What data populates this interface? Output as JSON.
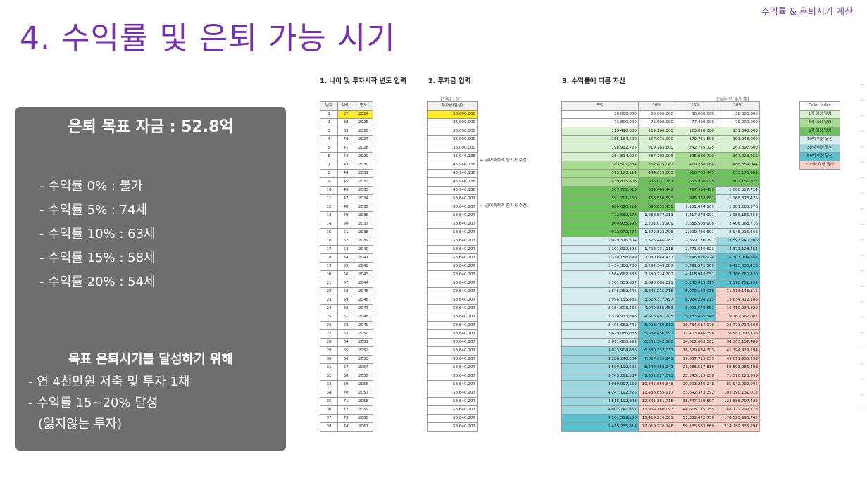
{
  "header": {
    "top_right": "수익률 & 은퇴시기 계산",
    "title": "4. 수익률 및 은퇴 가능 시기"
  },
  "panel": {
    "goal": "은퇴 목표 자금 : 52.8억",
    "rates": [
      "- 수익률 0% : 불가",
      "- 수익률 5% : 74세",
      "- 수익률 10% : 63세",
      "- 수익률 15% : 58세",
      "- 수익률 20% : 54세"
    ],
    "subtitle": "목표 은퇴시기를 달성하기 위해",
    "items": [
      "- 연 4천만원 저축 및 투자 1채",
      "- 수익률 15~20% 달성",
      "(잃지않는 투자)"
    ]
  },
  "sheet": {
    "section1": "1. 나이 및 투자시작 년도 입력",
    "section2": "2. 투자금 입력",
    "section3": "3. 수익률에 따른 자산",
    "unit_invest": "[단위 : 원]",
    "unit_returns": "[%는 년 수익률]",
    "headers_left": [
      "년차",
      "나이",
      "연도"
    ],
    "header_invest": "투자금(원금)",
    "headers_returns": [
      "5%",
      "10%",
      "15%",
      "20%"
    ],
    "note_row6": "← 급여축적액 증가시 수정",
    "note_row11": "← 급여축적액 증가시 수정",
    "rows": [
      [
        "1",
        "37",
        "2024",
        "36,000,000",
        "36,000,000",
        "36,000,000",
        "36,000,000",
        "36,000,000"
      ],
      [
        "2",
        "38",
        "2025",
        "36,000,000",
        "73,800,000",
        "75,600,000",
        "77,400,000",
        "79,200,000"
      ],
      [
        "3",
        "39",
        "2026",
        "36,000,000",
        "113,490,000",
        "119,160,000",
        "125,010,000",
        "131,040,000"
      ],
      [
        "4",
        "40",
        "2027",
        "36,000,000",
        "155,164,500",
        "167,076,000",
        "179,761,500",
        "193,248,000"
      ],
      [
        "5",
        "41",
        "2028",
        "36,000,000",
        "198,922,725",
        "219,783,600",
        "242,725,725",
        "267,897,600"
      ],
      [
        "6",
        "42",
        "2029",
        "45,946,136",
        "254,814,998",
        "287,708,096",
        "325,080,720",
        "367,423,256"
      ],
      [
        "7",
        "43",
        "2030",
        "45,946,136",
        "313,501,884",
        "362,425,042",
        "419,788,964",
        "486,854,044"
      ],
      [
        "8",
        "44",
        "2031",
        "45,946,136",
        "375,123,114",
        "444,613,683",
        "528,703,445",
        "630,170,989"
      ],
      [
        "9",
        "45",
        "2032",
        "45,946,136",
        "439,825,406",
        "535,021,187",
        "653,956,098",
        "802,151,323"
      ],
      [
        "10",
        "46",
        "2033",
        "45,946,136",
        "507,762,813",
        "634,469,442",
        "797,994,499",
        "1,008,527,724"
      ],
      [
        "11",
        "47",
        "2034",
        "58,640,207",
        "591,791,160",
        "756,556,593",
        "976,333,881",
        "1,268,873,475"
      ],
      [
        "12",
        "48",
        "2035",
        "58,640,207",
        "680,020,924",
        "890,852,459",
        "1,181,424,169",
        "1,581,288,376"
      ],
      [
        "13",
        "49",
        "2036",
        "58,640,207",
        "772,662,177",
        "1,038,577,911",
        "1,417,278,001",
        "1,956,186,258"
      ],
      [
        "14",
        "50",
        "2037",
        "58,640,207",
        "869,935,493",
        "1,201,075,909",
        "1,688,509,908",
        "2,406,063,716"
      ],
      [
        "15",
        "51",
        "2038",
        "58,640,207",
        "972,072,474",
        "1,379,823,706",
        "2,000,426,601",
        "2,945,916,666"
      ],
      [
        "16",
        "52",
        "2039",
        "58,640,207",
        "1,079,316,304",
        "1,576,446,283",
        "2,359,130,797",
        "3,593,740,206"
      ],
      [
        "17",
        "53",
        "2040",
        "58,640,207",
        "1,191,922,326",
        "1,792,731,118",
        "2,771,640,623",
        "4,371,128,454"
      ],
      [
        "18",
        "54",
        "2041",
        "58,640,207",
        "1,310,158,649",
        "2,030,644,437",
        "3,246,026,924",
        "5,303,994,351"
      ],
      [
        "19",
        "55",
        "2042",
        "58,640,207",
        "1,434,306,788",
        "2,292,349,087",
        "3,791,571,169",
        "6,423,433,428"
      ],
      [
        "20",
        "56",
        "2043",
        "58,640,207",
        "1,564,662,333",
        "2,580,224,202",
        "4,418,947,051",
        "7,766,760,320"
      ],
      [
        "21",
        "57",
        "2044",
        "58,640,207",
        "1,701,535,657",
        "2,896,886,829",
        "5,140,429,315",
        "9,378,752,591"
      ],
      [
        "22",
        "58",
        "2045",
        "58,640,207",
        "1,845,252,646",
        "3,245,215,718",
        "5,970,133,918",
        "11,313,143,315"
      ],
      [
        "23",
        "59",
        "2046",
        "58,640,207",
        "1,996,155,485",
        "3,628,377,497",
        "6,924,294,213",
        "13,634,412,185"
      ],
      [
        "24",
        "60",
        "2047",
        "58,640,207",
        "2,154,603,466",
        "4,049,855,453",
        "8,021,578,551",
        "16,419,934,829"
      ],
      [
        "25",
        "61",
        "2048",
        "58,640,207",
        "2,320,973,846",
        "4,513,481,205",
        "9,283,455,540",
        "19,762,562,001"
      ],
      [
        "26",
        "62",
        "2049",
        "58,640,207",
        "2,495,662,745",
        "5,023,469,532",
        "10,734,614,078",
        "23,773,714,608"
      ],
      [
        "27",
        "63",
        "2050",
        "58,640,207",
        "2,679,086,088",
        "5,584,456,692",
        "12,403,446,396",
        "28,587,097,736"
      ],
      [
        "28",
        "64",
        "2051",
        "58,640,207",
        "2,871,680,599",
        "6,201,542,568",
        "14,322,603,562",
        "34,363,157,489"
      ],
      [
        "29",
        "65",
        "2052",
        "58,640,207",
        "3,073,904,836",
        "6,880,337,031",
        "16,529,634,303",
        "41,294,429,194"
      ],
      [
        "30",
        "66",
        "2053",
        "58,640,207",
        "3,286,240,284",
        "7,627,010,941",
        "19,067,719,655",
        "49,611,955,239"
      ],
      [
        "31",
        "67",
        "2054",
        "58,640,207",
        "3,509,192,505",
        "8,448,352,241",
        "21,986,517,810",
        "59,593,986,493"
      ],
      [
        "32",
        "68",
        "2055",
        "58,640,207",
        "3,743,292,337",
        "9,351,827,672",
        "25,343,115,688",
        "71,570,223,999"
      ],
      [
        "33",
        "69",
        "2056",
        "58,640,207",
        "3,989,097,160",
        "10,345,650,646",
        "29,203,246,248",
        "85,942,909,005"
      ],
      [
        "34",
        "70",
        "2057",
        "58,640,207",
        "4,247,192,225",
        "11,438,855,917",
        "33,642,373,392",
        "103,190,131,013"
      ],
      [
        "35",
        "71",
        "2058",
        "58,640,207",
        "4,518,192,043",
        "12,641,381,715",
        "38,747,369,607",
        "123,886,797,422"
      ],
      [
        "36",
        "72",
        "2059",
        "58,640,207",
        "4,802,741,851",
        "13,964,160,093",
        "44,618,115,255",
        "148,722,797,113"
      ],
      [
        "37",
        "73",
        "2060",
        "58,640,207",
        "5,101,519,150",
        "15,419,216,309",
        "51,369,472,750",
        "178,525,996,742"
      ],
      [
        "38",
        "74",
        "2061",
        "58,640,207",
        "5,415,235,314",
        "17,019,778,146",
        "59,133,533,869",
        "214,289,836,297"
      ]
    ],
    "color_index": {
      "header": "Color Index",
      "items": [
        {
          "label": "1억 이상 달성",
          "color": "#d9f2d0"
        },
        {
          "label": "3억 이상 달성",
          "color": "#a8dc8f"
        },
        {
          "label": "5억 이상 달성",
          "color": "#6cc35a"
        },
        {
          "label": "10억 이상 달성",
          "color": "#d4eef0"
        },
        {
          "label": "30억 이상 달성",
          "color": "#9ad7df"
        },
        {
          "label": "50억 이상 달성",
          "color": "#58c0cf"
        },
        {
          "label": "100억 이상 달성",
          "color": "#f8d0c8"
        }
      ]
    }
  }
}
